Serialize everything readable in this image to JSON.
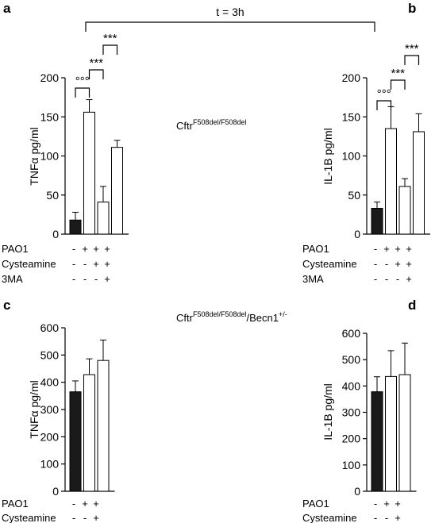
{
  "figure": {
    "time_label": "t = 3h",
    "genotype_top": {
      "base": "Cftr",
      "sup": "F508del/F508del"
    },
    "genotype_bottom": {
      "base": "Cftr",
      "sup": "F508del/F508del",
      "mid": "/Becn1",
      "sup2": "+/-"
    }
  },
  "colors": {
    "control_bar": "#1a1a1a",
    "treated_bar": "#ffffff",
    "stroke": "#000000"
  },
  "chart_data": [
    {
      "panel": "a",
      "type": "bar",
      "ylabel": "TNFα pg/ml",
      "ylim": [
        0,
        200
      ],
      "yticks": [
        0,
        50,
        100,
        150,
        200
      ],
      "values": [
        18,
        156,
        41,
        111
      ],
      "errors": [
        10,
        16,
        20,
        9
      ],
      "fills": [
        "dark",
        "light",
        "light",
        "light"
      ],
      "conditions": [
        {
          "label": "PAO1",
          "marks": [
            "-",
            "+",
            "+",
            "+"
          ]
        },
        {
          "label": "Cysteamine",
          "marks": [
            "-",
            "-",
            "+",
            "+"
          ]
        },
        {
          "label": "3MA",
          "marks": [
            "-",
            "-",
            "-",
            "+"
          ]
        }
      ],
      "brackets": [
        {
          "from": 0,
          "to": 1,
          "label": "°°°"
        },
        {
          "from": 1,
          "to": 2,
          "label": "***"
        },
        {
          "from": 2,
          "to": 3,
          "label": "***"
        }
      ]
    },
    {
      "panel": "b",
      "type": "bar",
      "ylabel": "IL-1B pg/ml",
      "ylim": [
        0,
        200
      ],
      "yticks": [
        0,
        50,
        100,
        150,
        200
      ],
      "values": [
        33,
        135,
        61,
        131
      ],
      "errors": [
        8,
        28,
        10,
        23
      ],
      "fills": [
        "dark",
        "light",
        "light",
        "light"
      ],
      "conditions": [
        {
          "label": "PAO1",
          "marks": [
            "-",
            "+",
            "+",
            "+"
          ]
        },
        {
          "label": "Cysteamine",
          "marks": [
            "-",
            "-",
            "+",
            "+"
          ]
        },
        {
          "label": "3MA",
          "marks": [
            "-",
            "-",
            "-",
            "+"
          ]
        }
      ],
      "brackets": [
        {
          "from": 0,
          "to": 1,
          "label": "°°°"
        },
        {
          "from": 1,
          "to": 2,
          "label": "***"
        },
        {
          "from": 2,
          "to": 3,
          "label": "***"
        }
      ]
    },
    {
      "panel": "c",
      "type": "bar",
      "ylabel": "TNFα pg/ml",
      "ylim": [
        0,
        600
      ],
      "yticks": [
        0,
        100,
        200,
        300,
        400,
        500,
        600
      ],
      "values": [
        365,
        428,
        480
      ],
      "errors": [
        40,
        58,
        75
      ],
      "fills": [
        "dark",
        "light",
        "light"
      ],
      "conditions": [
        {
          "label": "PAO1",
          "marks": [
            "-",
            "+",
            "+"
          ]
        },
        {
          "label": "Cysteamine",
          "marks": [
            "-",
            "-",
            "+"
          ]
        }
      ],
      "brackets": []
    },
    {
      "panel": "d",
      "type": "bar",
      "ylabel": "IL-1B pg/ml",
      "ylim": [
        0,
        600
      ],
      "yticks": [
        0,
        100,
        200,
        300,
        400,
        500,
        600
      ],
      "values": [
        378,
        436,
        443
      ],
      "errors": [
        57,
        98,
        120
      ],
      "fills": [
        "dark",
        "light",
        "light"
      ],
      "conditions": [
        {
          "label": "PAO1",
          "marks": [
            "-",
            "+",
            "+"
          ]
        },
        {
          "label": "Cysteamine",
          "marks": [
            "-",
            "-",
            "+"
          ]
        }
      ],
      "brackets": []
    }
  ]
}
